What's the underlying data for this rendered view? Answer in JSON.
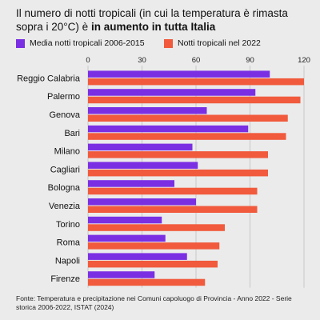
{
  "title_plain": "Il numero di notti tropicali (in cui la temperatura è rimasta sopra i 20°C) è ",
  "title_bold": "in aumento in tutta Italia",
  "source": "Fonte: Temperatura e precipitazione nei Comuni capoluogo di Provincia - Anno 2022 - Serie storica 2006-2022, ISTAT (2024)",
  "colors": {
    "series1": "#7b2fe3",
    "series2": "#f15a3c",
    "grid": "#c8c8c8",
    "background": "#ebebeb"
  },
  "chart_data": {
    "type": "bar",
    "orientation": "horizontal",
    "xlim": [
      0,
      120
    ],
    "xticks": [
      0,
      30,
      60,
      90,
      120
    ],
    "grid": true,
    "legend": "top-left",
    "categories": [
      "Reggio Calabria",
      "Palermo",
      "Genova",
      "Bari",
      "Milano",
      "Cagliari",
      "Bologna",
      "Venezia",
      "Torino",
      "Roma",
      "Napoli",
      "Firenze"
    ],
    "series": [
      {
        "name": "Media notti tropicali 2006-2015",
        "values": [
          101,
          93,
          66,
          89,
          58,
          61,
          48,
          60,
          41,
          43,
          55,
          37
        ]
      },
      {
        "name": "Notti tropicali nel 2022",
        "values": [
          120,
          118,
          111,
          110,
          100,
          100,
          94,
          94,
          76,
          73,
          72,
          65
        ]
      }
    ]
  }
}
